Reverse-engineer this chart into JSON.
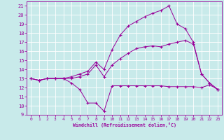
{
  "xlabel": "Windchill (Refroidissement éolien,°C)",
  "bg_color": "#c8eaea",
  "line_color": "#990099",
  "grid_color": "#ffffff",
  "text_color": "#990099",
  "xlim": [
    -0.5,
    23.5
  ],
  "ylim": [
    9,
    21.5
  ],
  "xticks": [
    0,
    1,
    2,
    3,
    4,
    5,
    6,
    7,
    8,
    9,
    10,
    11,
    12,
    13,
    14,
    15,
    16,
    17,
    18,
    19,
    20,
    21,
    22,
    23
  ],
  "yticks": [
    9,
    10,
    11,
    12,
    13,
    14,
    15,
    16,
    17,
    18,
    19,
    20,
    21
  ],
  "curve1_x": [
    0,
    1,
    2,
    3,
    4,
    5,
    6,
    7,
    8,
    9,
    10,
    11,
    12,
    13,
    14,
    15,
    16,
    17,
    18,
    19,
    20,
    21,
    22,
    23
  ],
  "curve1_y": [
    13.0,
    12.8,
    13.0,
    13.0,
    13.0,
    12.5,
    11.8,
    10.3,
    10.3,
    9.4,
    12.2,
    12.2,
    12.2,
    12.2,
    12.2,
    12.2,
    12.2,
    12.1,
    12.1,
    12.1,
    12.1,
    12.0,
    12.3,
    11.8
  ],
  "curve2_x": [
    0,
    1,
    2,
    3,
    4,
    5,
    6,
    7,
    8,
    9,
    10,
    11,
    12,
    13,
    14,
    15,
    16,
    17,
    18,
    19,
    20,
    21,
    22,
    23
  ],
  "curve2_y": [
    13.0,
    12.8,
    13.0,
    13.0,
    13.0,
    13.0,
    13.2,
    13.5,
    14.5,
    13.2,
    14.5,
    15.2,
    15.8,
    16.3,
    16.5,
    16.6,
    16.5,
    16.8,
    17.0,
    17.2,
    16.8,
    13.5,
    12.5,
    11.8
  ],
  "curve3_x": [
    0,
    1,
    2,
    3,
    4,
    5,
    6,
    7,
    8,
    9,
    10,
    11,
    12,
    13,
    14,
    15,
    16,
    17,
    18,
    19,
    20,
    21,
    22,
    23
  ],
  "curve3_y": [
    13.0,
    12.8,
    13.0,
    13.0,
    13.0,
    13.2,
    13.5,
    13.8,
    14.8,
    14.0,
    16.2,
    17.8,
    18.8,
    19.3,
    19.8,
    20.2,
    20.5,
    21.0,
    19.0,
    18.5,
    17.0,
    13.5,
    12.5,
    11.8
  ]
}
